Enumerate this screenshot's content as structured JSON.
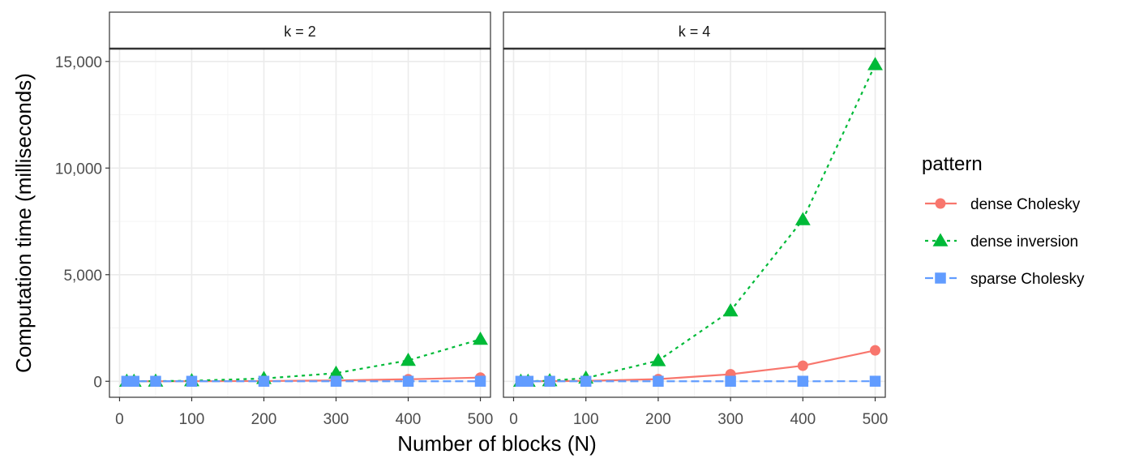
{
  "chart_data": {
    "type": "line",
    "xlabel": "Number of blocks (N)",
    "ylabel": "Computation time (milliseconds)",
    "xlim": [
      -14,
      514
    ],
    "ylim": [
      -750,
      15600
    ],
    "x_ticks": [
      0,
      100,
      200,
      300,
      400,
      500
    ],
    "x_tick_labels": [
      "0",
      "100",
      "200",
      "300",
      "400",
      "500"
    ],
    "y_ticks": [
      0,
      5000,
      10000,
      15000
    ],
    "y_tick_labels": [
      "0",
      "5,000",
      "10,000",
      "15,000"
    ],
    "grid": true,
    "legend": {
      "title": "pattern",
      "position": "right",
      "entries": [
        {
          "name": "dense Cholesky",
          "color": "#F8766D",
          "marker": "circle",
          "line": "solid"
        },
        {
          "name": "dense inversion",
          "color": "#00BA38",
          "marker": "triangle",
          "line": "dotted"
        },
        {
          "name": "sparse Cholesky",
          "color": "#619CFF",
          "marker": "square",
          "line": "dashed"
        }
      ]
    },
    "x": [
      10,
      20,
      50,
      100,
      200,
      300,
      400,
      500
    ],
    "facets": [
      {
        "label": "k = 2",
        "series": [
          {
            "name": "dense Cholesky",
            "values": [
              0,
              0,
              1,
              3,
              12,
              40,
              95,
              175
            ]
          },
          {
            "name": "dense inversion",
            "values": [
              1,
              2,
              6,
              25,
              130,
              380,
              980,
              1970
            ]
          },
          {
            "name": "sparse Cholesky",
            "values": [
              0,
              0,
              0,
              0,
              1,
              1,
              1,
              2
            ]
          }
        ]
      },
      {
        "label": "k = 4",
        "series": [
          {
            "name": "dense Cholesky",
            "values": [
              1,
              2,
              5,
              20,
              100,
              330,
              730,
              1450
            ]
          },
          {
            "name": "dense inversion",
            "values": [
              2,
              5,
              25,
              150,
              970,
              3300,
              7580,
              14850
            ]
          },
          {
            "name": "sparse Cholesky",
            "values": [
              0,
              0,
              0,
              0,
              1,
              1,
              2,
              3
            ]
          }
        ]
      }
    ]
  }
}
